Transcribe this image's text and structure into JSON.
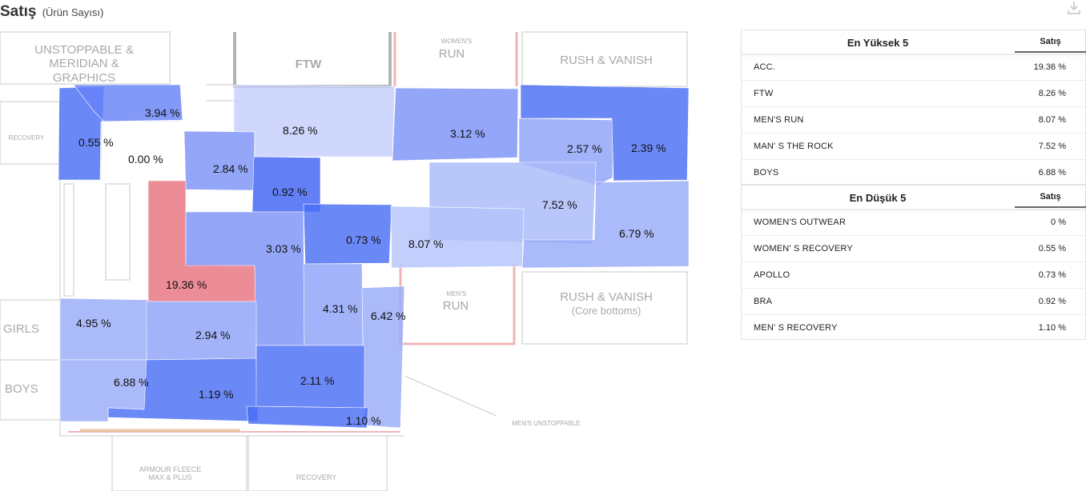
{
  "header": {
    "title": "Satış",
    "subtitle": "(Ürün Sayısı)",
    "download_icon": "download-icon"
  },
  "plan": {
    "room_labels": {
      "unstoppable": "UNSTOPPABLE &\nMERIDIAN & GRAPHICS",
      "ftw": "FTW",
      "womens_run_1": "WOMEN'S",
      "womens_run_2": "RUN",
      "rush_vanish_top": "RUSH & VANISH",
      "recovery_left": "RECOVERY",
      "girls": "GIRLS",
      "boys": "BOYS",
      "mens_run_1": "MEN'S",
      "mens_run_2": "RUN",
      "rush_vanish_bottom_1": "RUSH & VANISH",
      "rush_vanish_bottom_2": "(Core bottoms)",
      "mens_unstoppable": "MEN'S UNSTOPPABLE",
      "armour_fleece": "ARMOUR FLEECE\nMAX & PLUS",
      "recovery_bottom": "RECOVERY"
    },
    "zones": {
      "womens_recovery": "0.55 %",
      "z394": "3.94 %",
      "womens_outwear": "0.00 %",
      "ftw": "8.26 %",
      "z312": "3.12 %",
      "z257": "2.57 %",
      "z239": "2.39 %",
      "z284": "2.84 %",
      "bra": "0.92 %",
      "mans_the_rock": "7.52 %",
      "z679": "6.79 %",
      "apollo": "0.73 %",
      "mens_run": "8.07 %",
      "z303": "3.03 %",
      "acc": "19.36 %",
      "z431": "4.31 %",
      "z642": "6.42 %",
      "z495": "4.95 %",
      "z294": "2.94 %",
      "boys": "6.88 %",
      "z119": "1.19 %",
      "z211": "2.11 %",
      "mens_recovery": "1.10 %"
    },
    "colors": {
      "highest": "#e8737f",
      "dark_blue": "#4b6ef5",
      "mid_blue": "#7b93f7",
      "light_blue": "#a9b9f9",
      "pale_blue": "#c5d0fb"
    }
  },
  "top5": {
    "title": "En Yüksek 5",
    "column": "Satış",
    "rows": [
      {
        "name": "ACC.",
        "value": "19.36 %"
      },
      {
        "name": "FTW",
        "value": "8.26 %"
      },
      {
        "name": "MEN'S RUN",
        "value": "8.07 %"
      },
      {
        "name": "MAN' S THE ROCK",
        "value": "7.52 %"
      },
      {
        "name": "BOYS",
        "value": "6.88 %"
      }
    ]
  },
  "bottom5": {
    "title": "En Düşük 5",
    "column": "Satış",
    "rows": [
      {
        "name": "WOMEN'S OUTWEAR",
        "value": "0 %"
      },
      {
        "name": "WOMEN' S RECOVERY",
        "value": "0.55 %"
      },
      {
        "name": "APOLLO",
        "value": "0.73 %"
      },
      {
        "name": "BRA",
        "value": "0.92 %"
      },
      {
        "name": "MEN' S RECOVERY",
        "value": "1.10 %"
      }
    ]
  }
}
